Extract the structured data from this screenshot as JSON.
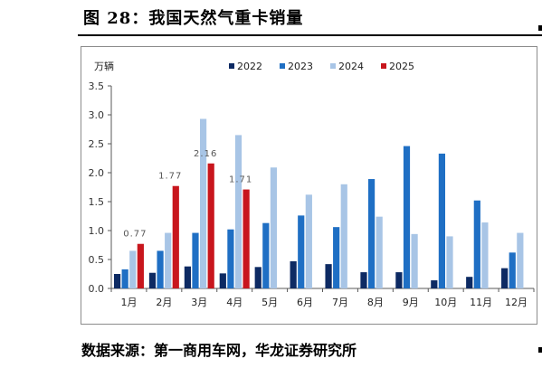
{
  "figure": {
    "title": "图 28：我国天然气重卡销量",
    "source": "数据来源：第一商用车网，华龙证券研究所"
  },
  "colors": {
    "2022": "#0d2a63",
    "2023": "#1f6fc4",
    "2024": "#a8c5e6",
    "2025": "#c8161d",
    "axis": "#595959",
    "frame": "#8c8c8c"
  },
  "chart_data": {
    "type": "bar",
    "ylabel": "万辆",
    "xlabel": "",
    "ylim": [
      0,
      3.5
    ],
    "yticks": [
      "0.0",
      "0.5",
      "1.0",
      "1.5",
      "2.0",
      "2.5",
      "3.0",
      "3.5"
    ],
    "grid": false,
    "legend_position": "top",
    "categories": [
      "1月",
      "2月",
      "3月",
      "4月",
      "5月",
      "6月",
      "7月",
      "8月",
      "9月",
      "10月",
      "11月",
      "12月"
    ],
    "series": [
      {
        "name": "2022",
        "values": [
          0.25,
          0.27,
          0.38,
          0.26,
          0.37,
          0.47,
          0.42,
          0.28,
          0.28,
          0.14,
          0.2,
          0.35
        ]
      },
      {
        "name": "2023",
        "values": [
          0.33,
          0.65,
          0.96,
          1.02,
          1.13,
          1.26,
          1.06,
          1.89,
          2.46,
          2.33,
          1.52,
          0.62
        ]
      },
      {
        "name": "2024",
        "values": [
          0.65,
          0.96,
          2.93,
          2.65,
          2.09,
          1.62,
          1.8,
          1.24,
          0.94,
          0.9,
          1.14,
          0.96
        ]
      },
      {
        "name": "2025",
        "values": [
          0.77,
          1.77,
          2.16,
          1.71,
          null,
          null,
          null,
          null,
          null,
          null,
          null,
          null
        ],
        "data_labels": [
          "0.77",
          "1.77",
          "2.16",
          "1.71"
        ]
      }
    ]
  }
}
